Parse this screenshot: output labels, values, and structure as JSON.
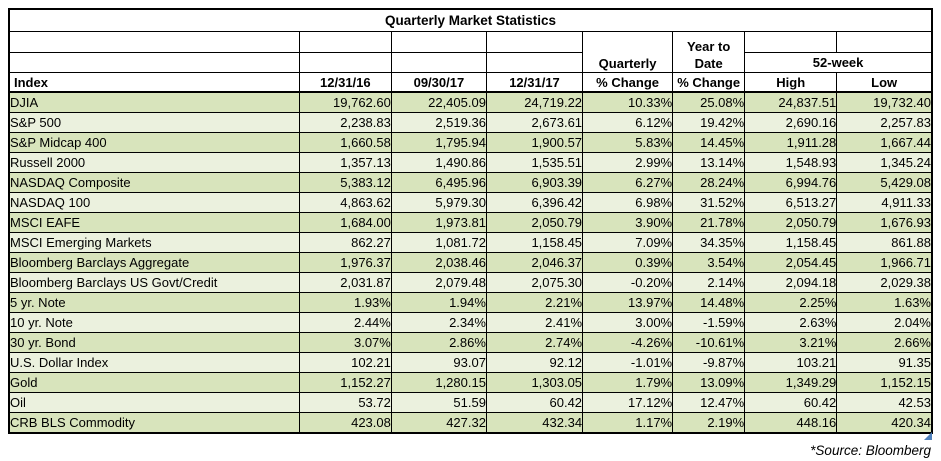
{
  "table": {
    "title": "Quarterly Market Statistics",
    "header": {
      "group_quarterly": "Quarterly",
      "group_ytd": "Year to\nDate",
      "group_52week": "52-week",
      "col_index": "Index",
      "col_date_1": "12/31/16",
      "col_date_2": "09/30/17",
      "col_date_3": "12/31/17",
      "col_pct_change_quarterly": "% Change",
      "col_pct_change_ytd": "% Change",
      "col_high": "High",
      "col_low": "Low"
    },
    "rows": [
      {
        "index": "DJIA",
        "values": [
          "19,762.60",
          "22,405.09",
          "24,719.22",
          "10.33%",
          "25.08%",
          "24,837.51",
          "19,732.40"
        ]
      },
      {
        "index": "S&P 500",
        "values": [
          "2,238.83",
          "2,519.36",
          "2,673.61",
          "6.12%",
          "19.42%",
          "2,690.16",
          "2,257.83"
        ]
      },
      {
        "index": "S&P Midcap 400",
        "values": [
          "1,660.58",
          "1,795.94",
          "1,900.57",
          "5.83%",
          "14.45%",
          "1,911.28",
          "1,667.44"
        ]
      },
      {
        "index": "Russell 2000",
        "values": [
          "1,357.13",
          "1,490.86",
          "1,535.51",
          "2.99%",
          "13.14%",
          "1,548.93",
          "1,345.24"
        ]
      },
      {
        "index": "NASDAQ Composite",
        "values": [
          "5,383.12",
          "6,495.96",
          "6,903.39",
          "6.27%",
          "28.24%",
          "6,994.76",
          "5,429.08"
        ]
      },
      {
        "index": "NASDAQ 100",
        "values": [
          "4,863.62",
          "5,979.30",
          "6,396.42",
          "6.98%",
          "31.52%",
          "6,513.27",
          "4,911.33"
        ]
      },
      {
        "index": "MSCI EAFE",
        "values": [
          "1,684.00",
          "1,973.81",
          "2,050.79",
          "3.90%",
          "21.78%",
          "2,050.79",
          "1,676.93"
        ]
      },
      {
        "index": "MSCI Emerging Markets",
        "values": [
          "862.27",
          "1,081.72",
          "1,158.45",
          "7.09%",
          "34.35%",
          "1,158.45",
          "861.88"
        ]
      },
      {
        "index": "Bloomberg Barclays Aggregate",
        "values": [
          "1,976.37",
          "2,038.46",
          "2,046.37",
          "0.39%",
          "3.54%",
          "2,054.45",
          "1,966.71"
        ]
      },
      {
        "index": "Bloomberg Barclays US Govt/Credit",
        "values": [
          "2,031.87",
          "2,079.48",
          "2,075.30",
          "-0.20%",
          "2.14%",
          "2,094.18",
          "2,029.38"
        ]
      },
      {
        "index": "5 yr. Note",
        "values": [
          "1.93%",
          "1.94%",
          "2.21%",
          "13.97%",
          "14.48%",
          "2.25%",
          "1.63%"
        ]
      },
      {
        "index": "10 yr. Note",
        "values": [
          "2.44%",
          "2.34%",
          "2.41%",
          "3.00%",
          "-1.59%",
          "2.63%",
          "2.04%"
        ]
      },
      {
        "index": "30 yr. Bond",
        "values": [
          "3.07%",
          "2.86%",
          "2.74%",
          "-4.26%",
          "-10.61%",
          "3.21%",
          "2.66%"
        ]
      },
      {
        "index": "U.S. Dollar Index",
        "values": [
          "102.21",
          "93.07",
          "92.12",
          "-1.01%",
          "-9.87%",
          "103.21",
          "91.35"
        ]
      },
      {
        "index": "Gold",
        "values": [
          "1,152.27",
          "1,280.15",
          "1,303.05",
          "1.79%",
          "13.09%",
          "1,349.29",
          "1,152.15"
        ]
      },
      {
        "index": "Oil",
        "values": [
          "53.72",
          "51.59",
          "60.42",
          "17.12%",
          "12.47%",
          "60.42",
          "42.53"
        ]
      },
      {
        "index": "CRB BLS Commodity",
        "values": [
          "423.08",
          "427.32",
          "432.34",
          "1.17%",
          "2.19%",
          "448.16",
          "420.34"
        ]
      }
    ],
    "colors": {
      "row_shade_dark": "#d8e4bc",
      "row_shade_light": "#ebf1de",
      "border": "#000000",
      "corner_marker_blue": "#4f81bd"
    }
  },
  "footer": {
    "source_note": "*Source: Bloomberg"
  }
}
